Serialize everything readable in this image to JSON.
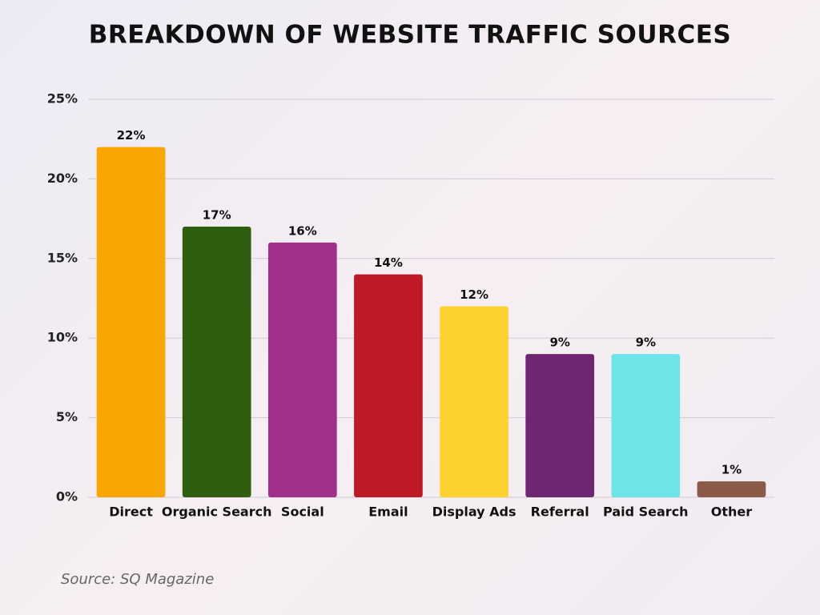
{
  "chart_data": {
    "type": "bar",
    "title": "BREAKDOWN OF WEBSITE TRAFFIC SOURCES",
    "categories": [
      "Direct",
      "Organic Search",
      "Social",
      "Email",
      "Display Ads",
      "Referral",
      "Paid Search",
      "Other"
    ],
    "values": [
      22,
      17,
      16,
      14,
      12,
      9,
      9,
      1
    ],
    "value_labels": [
      "22%",
      "17%",
      "16%",
      "14%",
      "12%",
      "9%",
      "9%",
      "1%"
    ],
    "colors": [
      "#f9a602",
      "#2f5e11",
      "#a0318a",
      "#bd1a26",
      "#fdd22f",
      "#6f2670",
      "#6ee3e8",
      "#8a5a48"
    ],
    "ylim": [
      0,
      25
    ],
    "yticks": [
      {
        "value": 0,
        "label": "0%"
      },
      {
        "value": 5,
        "label": "5%"
      },
      {
        "value": 10,
        "label": "10%"
      },
      {
        "value": 15,
        "label": "15%"
      },
      {
        "value": 20,
        "label": "20%"
      },
      {
        "value": 25,
        "label": "25%"
      }
    ],
    "grid": true,
    "source": "Source: SQ Magazine"
  }
}
